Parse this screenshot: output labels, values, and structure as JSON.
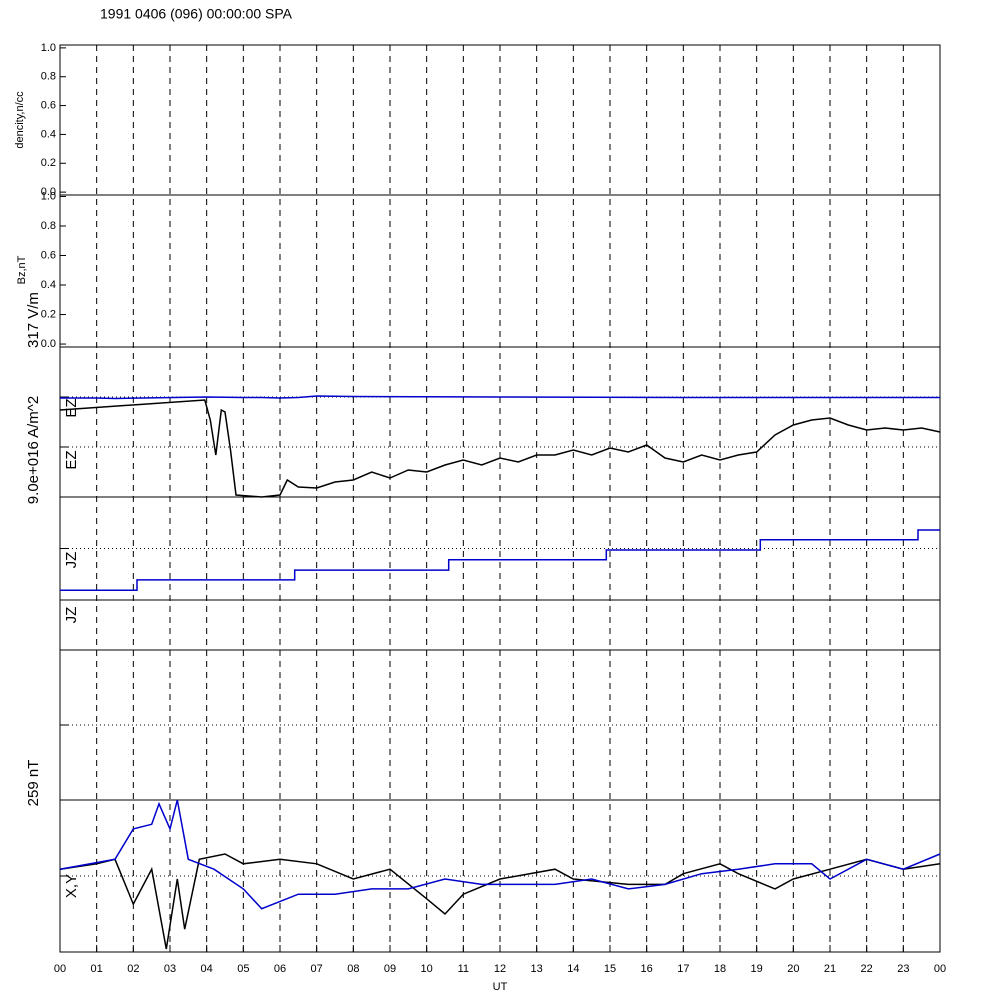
{
  "chart_data": [
    {
      "type": "line",
      "title": "1991 0406 (096) 00:00:00 SPA",
      "labels": [
        "dencity,n/cc"
      ],
      "xlim": [
        0,
        24
      ],
      "ylim": [
        -0.02,
        1.02
      ],
      "yticks": [
        {
          "value": 0,
          "label": "0.0"
        },
        {
          "value": 0.2,
          "label": "0.2"
        },
        {
          "value": 0.4,
          "label": "0.4"
        },
        {
          "value": 0.6,
          "label": "0.6"
        },
        {
          "value": 0.8,
          "label": "0.8"
        },
        {
          "value": 1,
          "label": "1.0"
        }
      ],
      "series": []
    },
    {
      "type": "line",
      "labels": [
        "Bz,nT"
      ],
      "xlim": [
        0,
        24
      ],
      "ylim": [
        -0.02,
        1.01
      ],
      "yticks": [
        {
          "value": 0,
          "label": "0.0"
        },
        {
          "value": 0.2,
          "label": "0.2"
        },
        {
          "value": 0.4,
          "label": "0.4"
        },
        {
          "value": 0.6,
          "label": "0.6"
        },
        {
          "value": 0.8,
          "label": "0.8"
        },
        {
          "value": 1,
          "label": "1.0"
        }
      ],
      "series": []
    },
    {
      "type": "line",
      "labels": [
        "317 V/m",
        "EZ",
        "EZ",
        "9.0e+016 A/m^2"
      ],
      "xlim": [
        0,
        24
      ],
      "ylim": [
        0,
        3
      ],
      "reference_lines": [
        1,
        2
      ],
      "series": [
        {
          "color": "#0000cc",
          "x": [
            0,
            1,
            1.5,
            4,
            5,
            5.5,
            6,
            6.5,
            7,
            8,
            12,
            17,
            24
          ],
          "values": [
            1.98,
            1.98,
            1.97,
            2.0,
            1.99,
            1.99,
            1.98,
            1.99,
            2.02,
            2.01,
            2.0,
            1.99,
            1.99
          ]
        },
        {
          "color": "#000000",
          "x": [
            0,
            3.95,
            4.1,
            4.25,
            4.4,
            4.5,
            4.65,
            4.8,
            5.5,
            6,
            6.2,
            6.5,
            7,
            7.5,
            8,
            8.5,
            9,
            9.5,
            10,
            10.5,
            11,
            11.5,
            12,
            12.5,
            13,
            13.5,
            14,
            14.5,
            15,
            15.5,
            16,
            16.5,
            17,
            17.5,
            18,
            18.5,
            19,
            19.5,
            20,
            20.5,
            21,
            21.5,
            22,
            22.5,
            23,
            23.5,
            24
          ],
          "values": [
            1.74,
            1.94,
            1.54,
            0.84,
            1.74,
            1.7,
            0.94,
            0.04,
            0.0,
            0.04,
            0.34,
            0.2,
            0.18,
            0.3,
            0.34,
            0.5,
            0.38,
            0.54,
            0.5,
            0.64,
            0.74,
            0.64,
            0.78,
            0.7,
            0.84,
            0.84,
            0.94,
            0.84,
            0.98,
            0.9,
            1.04,
            0.78,
            0.7,
            0.84,
            0.74,
            0.84,
            0.9,
            1.24,
            1.44,
            1.54,
            1.58,
            1.44,
            1.34,
            1.38,
            1.34,
            1.38,
            1.3
          ]
        }
      ]
    },
    {
      "type": "line",
      "labels": [
        "JZ"
      ],
      "xlim": [
        0,
        24
      ],
      "ylim": [
        0,
        2
      ],
      "reference_lines": [
        1
      ],
      "series": [
        {
          "color": "#0000cc",
          "x": [
            0,
            2.1,
            2.1,
            6.4,
            6.4,
            10.6,
            10.6,
            14.9,
            14.9,
            19.1,
            19.1,
            23.4,
            23.4,
            24
          ],
          "values": [
            0.19,
            0.19,
            0.39,
            0.39,
            0.58,
            0.58,
            0.78,
            0.78,
            0.97,
            0.97,
            1.17,
            1.17,
            1.36,
            1.36
          ]
        }
      ]
    },
    {
      "type": "line",
      "labels": [
        "JZ"
      ],
      "xlim": [
        0,
        24
      ],
      "series": []
    },
    {
      "type": "line",
      "labels": [],
      "xlim": [
        0,
        24
      ],
      "ylim": [
        -1,
        1
      ],
      "reference_lines": [
        0
      ],
      "series": []
    },
    {
      "type": "line",
      "labels": [
        "259 nT",
        "X,Y"
      ],
      "xlim": [
        0,
        24
      ],
      "ylim": [
        -1,
        1
      ],
      "reference_lines": [
        0
      ],
      "xlabel": "UT",
      "xticks": [
        {
          "value": 0,
          "label": "00"
        },
        {
          "value": 1,
          "label": "01"
        },
        {
          "value": 2,
          "label": "02"
        },
        {
          "value": 3,
          "label": "03"
        },
        {
          "value": 4,
          "label": "04"
        },
        {
          "value": 5,
          "label": "05"
        },
        {
          "value": 6,
          "label": "06"
        },
        {
          "value": 7,
          "label": "07"
        },
        {
          "value": 8,
          "label": "08"
        },
        {
          "value": 9,
          "label": "09"
        },
        {
          "value": 10,
          "label": "10"
        },
        {
          "value": 11,
          "label": "11"
        },
        {
          "value": 12,
          "label": "12"
        },
        {
          "value": 13,
          "label": "13"
        },
        {
          "value": 14,
          "label": "14"
        },
        {
          "value": 15,
          "label": "15"
        },
        {
          "value": 16,
          "label": "16"
        },
        {
          "value": 17,
          "label": "17"
        },
        {
          "value": 18,
          "label": "18"
        },
        {
          "value": 19,
          "label": "19"
        },
        {
          "value": 20,
          "label": "20"
        },
        {
          "value": 21,
          "label": "21"
        },
        {
          "value": 22,
          "label": "22"
        },
        {
          "value": 23,
          "label": "23"
        },
        {
          "value": 24,
          "label": "00"
        }
      ],
      "series": [
        {
          "color": "#000000",
          "x": [
            0,
            1,
            1.5,
            2,
            2.5,
            2.9,
            3.2,
            3.4,
            3.8,
            4.5,
            5,
            6,
            7,
            8,
            9,
            10,
            10.5,
            11,
            12,
            13.5,
            14,
            15.5,
            16.5,
            17,
            18,
            18.5,
            19.5,
            20,
            21,
            22,
            23,
            24
          ],
          "values": [
            0.09,
            0.16,
            0.22,
            -0.37,
            0.09,
            -0.96,
            -0.04,
            -0.7,
            0.22,
            0.29,
            0.16,
            0.22,
            0.16,
            -0.04,
            0.09,
            -0.3,
            -0.5,
            -0.24,
            -0.04,
            0.09,
            -0.04,
            -0.11,
            -0.11,
            0.03,
            0.16,
            0.03,
            -0.17,
            -0.04,
            0.09,
            0.22,
            0.09,
            0.16
          ]
        },
        {
          "color": "#0000cc",
          "x": [
            0,
            1.5,
            2,
            2.5,
            2.7,
            3,
            3.2,
            3.5,
            4.2,
            5,
            5.5,
            6.5,
            7.5,
            8.5,
            9.5,
            10.5,
            11.5,
            12.5,
            13.5,
            14.5,
            15.5,
            16.5,
            17.5,
            18.5,
            19.5,
            20.5,
            21,
            22,
            23,
            24
          ],
          "values": [
            0.09,
            0.22,
            0.62,
            0.68,
            0.95,
            0.62,
            1.0,
            0.22,
            0.09,
            -0.17,
            -0.43,
            -0.24,
            -0.24,
            -0.17,
            -0.17,
            -0.04,
            -0.11,
            -0.11,
            -0.11,
            -0.04,
            -0.17,
            -0.11,
            0.03,
            0.09,
            0.16,
            0.16,
            -0.04,
            0.22,
            0.09,
            0.29
          ]
        }
      ]
    }
  ]
}
